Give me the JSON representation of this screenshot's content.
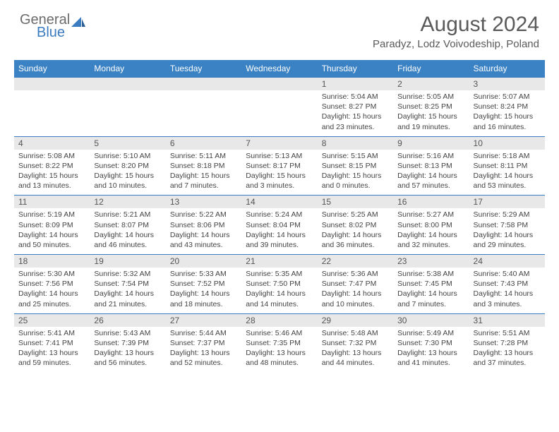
{
  "logo": {
    "part1": "General",
    "part2": "Blue"
  },
  "title": "August 2024",
  "location": "Paradyz, Lodz Voivodeship, Poland",
  "colors": {
    "header_bg": "#3b82c4",
    "header_text": "#ffffff",
    "daynum_bg": "#e8e8e8",
    "border": "#3b7bbf",
    "body_text": "#444444",
    "title_text": "#5a5a5a",
    "logo_gray": "#6b6b6b",
    "logo_blue": "#3b7bbf"
  },
  "day_names": [
    "Sunday",
    "Monday",
    "Tuesday",
    "Wednesday",
    "Thursday",
    "Friday",
    "Saturday"
  ],
  "weeks": [
    [
      null,
      null,
      null,
      null,
      {
        "n": "1",
        "sr": "5:04 AM",
        "ss": "8:27 PM",
        "dl": "15 hours and 23 minutes."
      },
      {
        "n": "2",
        "sr": "5:05 AM",
        "ss": "8:25 PM",
        "dl": "15 hours and 19 minutes."
      },
      {
        "n": "3",
        "sr": "5:07 AM",
        "ss": "8:24 PM",
        "dl": "15 hours and 16 minutes."
      }
    ],
    [
      {
        "n": "4",
        "sr": "5:08 AM",
        "ss": "8:22 PM",
        "dl": "15 hours and 13 minutes."
      },
      {
        "n": "5",
        "sr": "5:10 AM",
        "ss": "8:20 PM",
        "dl": "15 hours and 10 minutes."
      },
      {
        "n": "6",
        "sr": "5:11 AM",
        "ss": "8:18 PM",
        "dl": "15 hours and 7 minutes."
      },
      {
        "n": "7",
        "sr": "5:13 AM",
        "ss": "8:17 PM",
        "dl": "15 hours and 3 minutes."
      },
      {
        "n": "8",
        "sr": "5:15 AM",
        "ss": "8:15 PM",
        "dl": "15 hours and 0 minutes."
      },
      {
        "n": "9",
        "sr": "5:16 AM",
        "ss": "8:13 PM",
        "dl": "14 hours and 57 minutes."
      },
      {
        "n": "10",
        "sr": "5:18 AM",
        "ss": "8:11 PM",
        "dl": "14 hours and 53 minutes."
      }
    ],
    [
      {
        "n": "11",
        "sr": "5:19 AM",
        "ss": "8:09 PM",
        "dl": "14 hours and 50 minutes."
      },
      {
        "n": "12",
        "sr": "5:21 AM",
        "ss": "8:07 PM",
        "dl": "14 hours and 46 minutes."
      },
      {
        "n": "13",
        "sr": "5:22 AM",
        "ss": "8:06 PM",
        "dl": "14 hours and 43 minutes."
      },
      {
        "n": "14",
        "sr": "5:24 AM",
        "ss": "8:04 PM",
        "dl": "14 hours and 39 minutes."
      },
      {
        "n": "15",
        "sr": "5:25 AM",
        "ss": "8:02 PM",
        "dl": "14 hours and 36 minutes."
      },
      {
        "n": "16",
        "sr": "5:27 AM",
        "ss": "8:00 PM",
        "dl": "14 hours and 32 minutes."
      },
      {
        "n": "17",
        "sr": "5:29 AM",
        "ss": "7:58 PM",
        "dl": "14 hours and 29 minutes."
      }
    ],
    [
      {
        "n": "18",
        "sr": "5:30 AM",
        "ss": "7:56 PM",
        "dl": "14 hours and 25 minutes."
      },
      {
        "n": "19",
        "sr": "5:32 AM",
        "ss": "7:54 PM",
        "dl": "14 hours and 21 minutes."
      },
      {
        "n": "20",
        "sr": "5:33 AM",
        "ss": "7:52 PM",
        "dl": "14 hours and 18 minutes."
      },
      {
        "n": "21",
        "sr": "5:35 AM",
        "ss": "7:50 PM",
        "dl": "14 hours and 14 minutes."
      },
      {
        "n": "22",
        "sr": "5:36 AM",
        "ss": "7:47 PM",
        "dl": "14 hours and 10 minutes."
      },
      {
        "n": "23",
        "sr": "5:38 AM",
        "ss": "7:45 PM",
        "dl": "14 hours and 7 minutes."
      },
      {
        "n": "24",
        "sr": "5:40 AM",
        "ss": "7:43 PM",
        "dl": "14 hours and 3 minutes."
      }
    ],
    [
      {
        "n": "25",
        "sr": "5:41 AM",
        "ss": "7:41 PM",
        "dl": "13 hours and 59 minutes."
      },
      {
        "n": "26",
        "sr": "5:43 AM",
        "ss": "7:39 PM",
        "dl": "13 hours and 56 minutes."
      },
      {
        "n": "27",
        "sr": "5:44 AM",
        "ss": "7:37 PM",
        "dl": "13 hours and 52 minutes."
      },
      {
        "n": "28",
        "sr": "5:46 AM",
        "ss": "7:35 PM",
        "dl": "13 hours and 48 minutes."
      },
      {
        "n": "29",
        "sr": "5:48 AM",
        "ss": "7:32 PM",
        "dl": "13 hours and 44 minutes."
      },
      {
        "n": "30",
        "sr": "5:49 AM",
        "ss": "7:30 PM",
        "dl": "13 hours and 41 minutes."
      },
      {
        "n": "31",
        "sr": "5:51 AM",
        "ss": "7:28 PM",
        "dl": "13 hours and 37 minutes."
      }
    ]
  ],
  "labels": {
    "sunrise": "Sunrise: ",
    "sunset": "Sunset: ",
    "daylight": "Daylight: "
  }
}
